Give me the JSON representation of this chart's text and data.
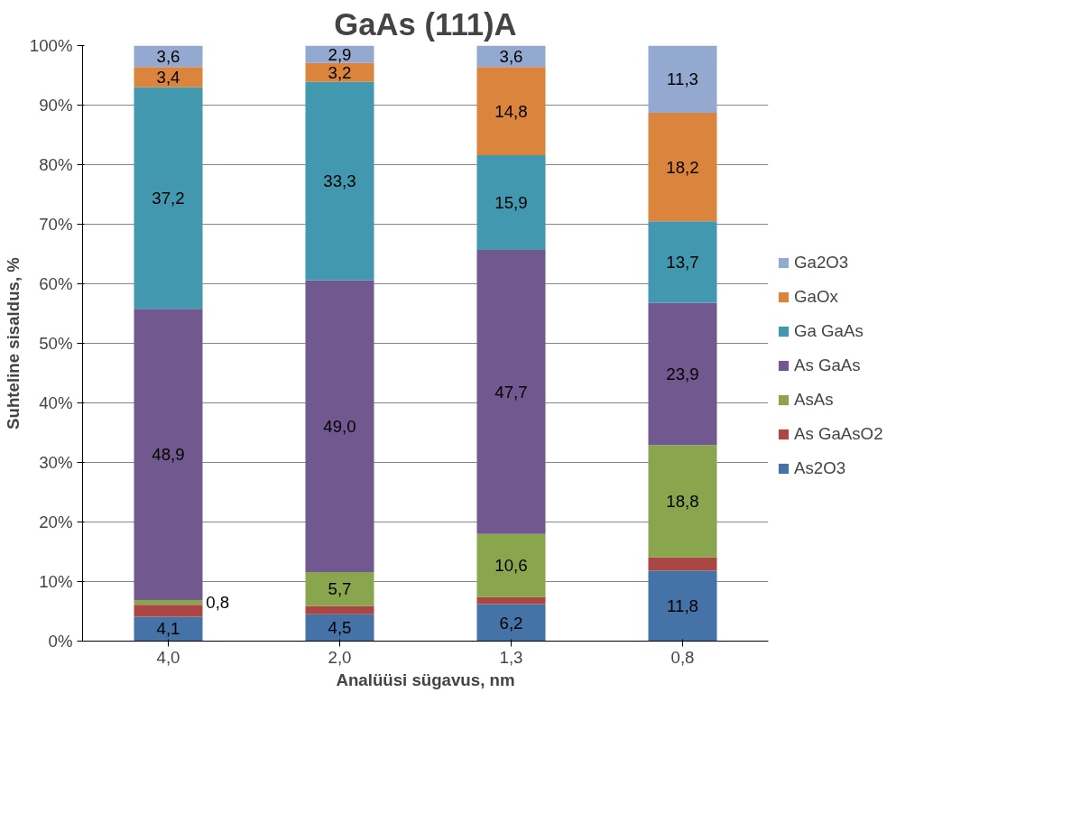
{
  "chart_data": {
    "type": "bar",
    "stacked": true,
    "title": "GaAs (111)A",
    "xlabel": "Analüüsi sügavus, nm",
    "ylabel": "Suhteline sisaldus, %",
    "categories": [
      "4,0",
      "2,0",
      "1,3",
      "0,8"
    ],
    "series": [
      {
        "name": "As2O3",
        "color": "#4572a7",
        "values": [
          4.1,
          4.5,
          6.2,
          11.8
        ],
        "value_labels": [
          "4,1",
          "4,5",
          "6,2",
          "11,8"
        ]
      },
      {
        "name": "As GaAsO2",
        "color": "#aa4643",
        "values": [
          2.0,
          1.4,
          1.2,
          2.3
        ],
        "value_labels": [
          null,
          null,
          null,
          null
        ]
      },
      {
        "name": "AsAs",
        "color": "#89a54e",
        "values": [
          0.8,
          5.7,
          10.6,
          18.8
        ],
        "value_labels": [
          "0,8",
          "5,7",
          "10,6",
          "18,8"
        ]
      },
      {
        "name": "As GaAs",
        "color": "#71588f",
        "values": [
          48.9,
          49.0,
          47.7,
          23.9
        ],
        "value_labels": [
          "48,9",
          "49,0",
          "47,7",
          "23,9"
        ]
      },
      {
        "name": "Ga GaAs",
        "color": "#4198af",
        "values": [
          37.2,
          33.3,
          15.9,
          13.7
        ],
        "value_labels": [
          "37,2",
          "33,3",
          "15,9",
          "13,7"
        ]
      },
      {
        "name": "GaOx",
        "color": "#db843d",
        "values": [
          3.4,
          3.2,
          14.8,
          18.2
        ],
        "value_labels": [
          "3,4",
          "3,2",
          "14,8",
          "18,2"
        ]
      },
      {
        "name": "Ga2O3",
        "color": "#93a9cf",
        "values": [
          3.6,
          2.9,
          3.6,
          11.3
        ],
        "value_labels": [
          "3,6",
          "2,9",
          "3,6",
          "11,3"
        ]
      }
    ],
    "ylim": [
      0,
      100
    ],
    "yticks": [
      {
        "value": 0,
        "label": "0%"
      },
      {
        "value": 10,
        "label": "10%"
      },
      {
        "value": 20,
        "label": "20%"
      },
      {
        "value": 30,
        "label": "30%"
      },
      {
        "value": 40,
        "label": "40%"
      },
      {
        "value": 50,
        "label": "50%"
      },
      {
        "value": 60,
        "label": "60%"
      },
      {
        "value": 70,
        "label": "70%"
      },
      {
        "value": 80,
        "label": "80%"
      },
      {
        "value": 90,
        "label": "90%"
      },
      {
        "value": 100,
        "label": "100%"
      }
    ],
    "grid": "y",
    "legend": "right"
  }
}
